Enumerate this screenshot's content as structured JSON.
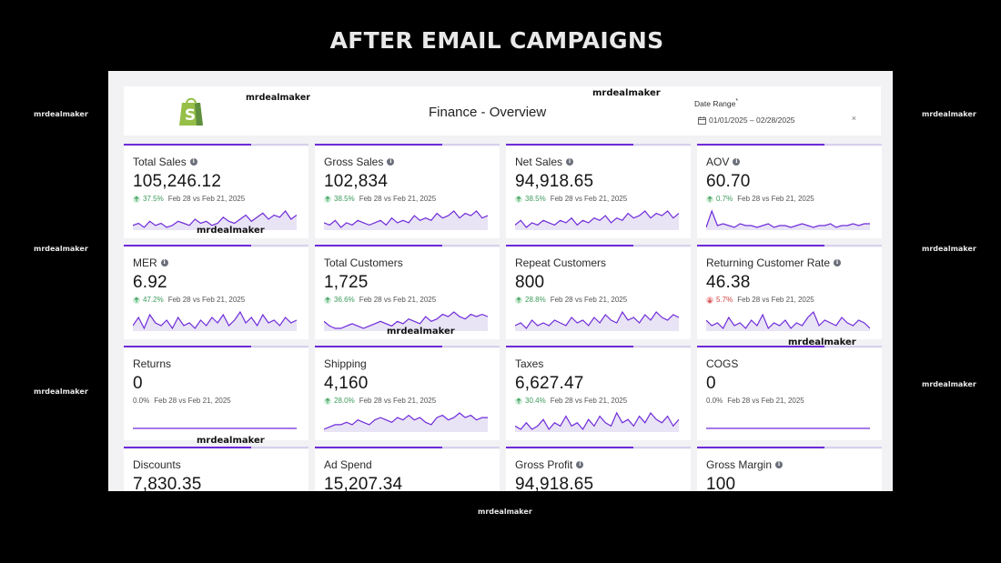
{
  "banner": {
    "title": "AFTER EMAIL CAMPAIGNS"
  },
  "watermark": "mrdealmaker",
  "colors": {
    "accent": "#6f2bd9",
    "accent_light": "#d8d0ef",
    "up": "#3a9a59",
    "down": "#d23f3f"
  },
  "header": {
    "title": "Finance - Overview",
    "date_label": "Date Range",
    "required_mark": "*",
    "date_value": "01/01/2025 – 02/28/2025",
    "clear": "×",
    "logo_icon": "shopify-bag-icon"
  },
  "cards": [
    {
      "title": "Total Sales",
      "info": true,
      "value": "105,246.12",
      "direction": "up",
      "pct": "37.5%",
      "compare": "Feb 28 vs Feb 21, 2025",
      "spark": [
        4,
        5,
        3,
        6,
        4,
        5,
        3,
        4,
        6,
        5,
        4,
        7,
        5,
        6,
        4,
        5,
        8,
        6,
        5,
        7,
        9,
        6,
        8,
        10,
        7,
        9,
        8,
        11,
        7,
        9
      ]
    },
    {
      "title": "Gross Sales",
      "info": true,
      "value": "102,834",
      "direction": "up",
      "pct": "38.5%",
      "compare": "Feb 28 vs Feb 21, 2025",
      "spark": [
        5,
        4,
        6,
        3,
        5,
        4,
        6,
        5,
        4,
        5,
        6,
        4,
        7,
        5,
        6,
        5,
        8,
        6,
        7,
        6,
        9,
        7,
        8,
        10,
        7,
        9,
        8,
        10,
        7,
        8
      ]
    },
    {
      "title": "Net Sales",
      "info": true,
      "value": "94,918.65",
      "direction": "up",
      "pct": "38.5%",
      "compare": "Feb 28 vs Feb 21, 2025",
      "spark": [
        4,
        6,
        3,
        5,
        4,
        6,
        5,
        4,
        6,
        5,
        7,
        4,
        6,
        5,
        7,
        6,
        8,
        5,
        7,
        6,
        9,
        7,
        8,
        10,
        7,
        9,
        8,
        10,
        7,
        9
      ]
    },
    {
      "title": "AOV",
      "info": true,
      "value": "60.70",
      "direction": "up",
      "pct": "0.7%",
      "compare": "Feb 28 vs Feb 21, 2025",
      "spark": [
        3,
        12,
        4,
        5,
        4,
        3,
        5,
        4,
        4,
        3,
        4,
        5,
        3,
        4,
        4,
        3,
        4,
        5,
        4,
        3,
        4,
        4,
        5,
        3,
        4,
        4,
        5,
        4,
        5,
        5
      ]
    },
    {
      "title": "MER",
      "info": true,
      "value": "6.92",
      "direction": "up",
      "pct": "47.2%",
      "compare": "Feb 28 vs Feb 21, 2025",
      "spark": [
        5,
        8,
        4,
        9,
        6,
        5,
        7,
        4,
        8,
        5,
        6,
        4,
        7,
        5,
        8,
        6,
        9,
        5,
        7,
        10,
        6,
        8,
        5,
        9,
        6,
        7,
        5,
        8,
        6,
        7
      ]
    },
    {
      "title": "Total Customers",
      "info": false,
      "value": "1,725",
      "direction": "up",
      "pct": "36.6%",
      "compare": "Feb 28 vs Feb 21, 2025",
      "spark": [
        6,
        4,
        3,
        3,
        4,
        5,
        4,
        3,
        4,
        5,
        6,
        5,
        4,
        6,
        5,
        7,
        6,
        5,
        8,
        6,
        7,
        9,
        8,
        10,
        8,
        7,
        9,
        8,
        9,
        8
      ]
    },
    {
      "title": "Repeat Customers",
      "info": false,
      "value": "800",
      "direction": "up",
      "pct": "28.8%",
      "compare": "Feb 28 vs Feb 21, 2025",
      "spark": [
        5,
        6,
        4,
        7,
        5,
        6,
        5,
        7,
        6,
        5,
        8,
        6,
        7,
        5,
        8,
        6,
        9,
        7,
        6,
        10,
        7,
        8,
        6,
        9,
        7,
        10,
        8,
        7,
        9,
        8
      ]
    },
    {
      "title": "Returning Customer Rate",
      "info": true,
      "value": "46.38",
      "direction": "down",
      "pct": "5.7%",
      "compare": "Feb 28 vs Feb 21, 2025",
      "spark": [
        8,
        6,
        7,
        5,
        9,
        6,
        7,
        5,
        8,
        6,
        10,
        5,
        7,
        6,
        8,
        5,
        7,
        6,
        9,
        11,
        6,
        8,
        7,
        6,
        9,
        7,
        6,
        8,
        7,
        5
      ]
    },
    {
      "title": "Returns",
      "info": false,
      "value": "0",
      "direction": "none",
      "pct": "0.0%",
      "compare": "Feb 28 vs Feb 21, 2025",
      "spark": [
        5,
        5,
        5,
        5,
        5,
        5,
        5,
        5,
        5,
        5,
        5,
        5,
        5,
        5,
        5,
        5,
        5,
        5,
        5,
        5,
        5,
        5,
        5,
        5,
        5,
        5,
        5,
        5,
        5,
        5
      ]
    },
    {
      "title": "Shipping",
      "info": false,
      "value": "4,160",
      "direction": "up",
      "pct": "28.0%",
      "compare": "Feb 28 vs Feb 21, 2025",
      "spark": [
        4,
        5,
        6,
        6,
        7,
        6,
        8,
        7,
        6,
        8,
        9,
        8,
        7,
        9,
        8,
        10,
        8,
        9,
        7,
        6,
        9,
        10,
        8,
        9,
        11,
        9,
        10,
        8,
        9,
        9
      ]
    },
    {
      "title": "Taxes",
      "info": false,
      "value": "6,627.47",
      "direction": "up",
      "pct": "30.4%",
      "compare": "Feb 28 vs Feb 21, 2025",
      "spark": [
        6,
        5,
        7,
        5,
        6,
        8,
        5,
        7,
        6,
        9,
        6,
        7,
        5,
        8,
        6,
        9,
        7,
        6,
        10,
        7,
        8,
        6,
        9,
        7,
        10,
        8,
        7,
        9,
        6,
        8
      ]
    },
    {
      "title": "COGS",
      "info": false,
      "value": "0",
      "direction": "none",
      "pct": "0.0%",
      "compare": "Feb 28 vs Feb 21, 2025",
      "spark": [
        5,
        5,
        5,
        5,
        5,
        5,
        5,
        5,
        5,
        5,
        5,
        5,
        5,
        5,
        5,
        5,
        5,
        5,
        5,
        5,
        5,
        5,
        5,
        5,
        5,
        5,
        5,
        5,
        5,
        5
      ]
    },
    {
      "title": "Discounts",
      "info": false,
      "value": "7,830.35",
      "direction": "none",
      "pct": "",
      "compare": "",
      "spark": []
    },
    {
      "title": "Ad Spend",
      "info": false,
      "value": "15,207.34",
      "direction": "none",
      "pct": "",
      "compare": "",
      "spark": []
    },
    {
      "title": "Gross Profit",
      "info": true,
      "value": "94,918.65",
      "direction": "none",
      "pct": "",
      "compare": "",
      "spark": []
    },
    {
      "title": "Gross Margin",
      "info": true,
      "value": "100",
      "direction": "none",
      "pct": "",
      "compare": "",
      "spark": []
    }
  ]
}
